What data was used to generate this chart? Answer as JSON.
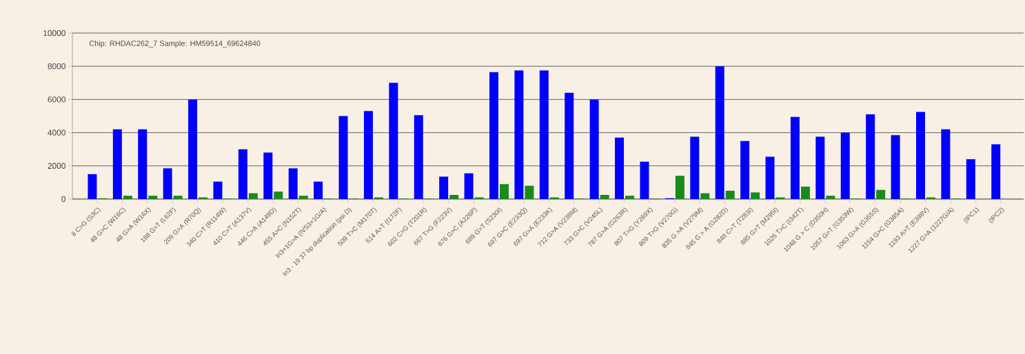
{
  "chart_data": {
    "type": "bar",
    "annotations": [
      "Chip: RHDAC262_7  Sample: HM59514_69624840"
    ],
    "categories": [
      "8 C>G (S3C)",
      "48 G>C (W16C)",
      "48 G>A (W16X)",
      "188 G>T (L62F)",
      "209 G>A  (R70Q)",
      "340 C>T (R114W)",
      "410 C>T (A137V)",
      "446 C>A (A149D)",
      "455 A>C (N152T)",
      "In3+1G>A (IVS3+1G/A)",
      "In3 - 19 37 bp duplication (psi D)",
      "509 T>C (M170T)",
      "514 A>T (I172F)",
      "602 C>G (T201R)",
      "667 T>G (F223V)",
      "676 G>C (A226P)",
      "689 G>T (S230I)",
      "697 G>C (E233Q)",
      "697 G>A (E233K)",
      "712 G>A (V238M)",
      "733 G>C (V245L)",
      "787 G>A (G263R)",
      "807 T>G (Y269X)",
      "809 T>G (V270G)",
      "835 G >A (V279M)",
      "845 G > A (G282D)",
      "848 C>T (T283I)",
      "885 G>T (M295I)",
      "1025 T>C (I342T)",
      "1048 G > C (D350H)",
      "1057 G>T (G353W)",
      "1063 G>A (G355S)",
      "1154 G>C (G385A)",
      "1193 A>T (E398V)",
      "1227 G>A (1227G/A)",
      "(IPC1)",
      "(IPC2)"
    ],
    "series": [
      {
        "color": "#0000ff",
        "values": [
          1500,
          4200,
          4200,
          1850,
          6000,
          1050,
          3000,
          2800,
          1850,
          1050,
          5000,
          5300,
          7000,
          5050,
          1350,
          1550,
          7650,
          7750,
          7750,
          6400,
          6000,
          3700,
          2250,
          50,
          3750,
          8000,
          3500,
          2550,
          4950,
          3750,
          4000,
          5100,
          3850,
          5250,
          4200,
          2400,
          3300
        ]
      },
      {
        "color": "#1a8a1a",
        "values": [
          50,
          200,
          200,
          200,
          100,
          30,
          350,
          450,
          200,
          30,
          30,
          100,
          30,
          30,
          250,
          100,
          900,
          800,
          100,
          30,
          250,
          200,
          30,
          1400,
          350,
          500,
          400,
          100,
          750,
          200,
          30,
          550,
          30,
          100,
          30,
          null,
          null
        ]
      }
    ],
    "ylim": [
      0,
      10000
    ],
    "yticks": [
      0,
      2000,
      4000,
      6000,
      8000,
      10000
    ],
    "grid": "y"
  }
}
